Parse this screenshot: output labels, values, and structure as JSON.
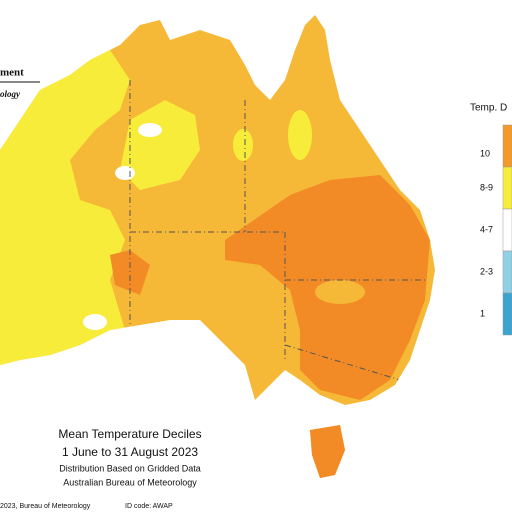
{
  "logo": {
    "line1": "ment",
    "line2": "ology"
  },
  "legend": {
    "title": "Temp. D",
    "items": [
      {
        "label": "10",
        "color": "#f39a2a"
      },
      {
        "label": "8-9",
        "color": "#f7ec3c"
      },
      {
        "label": "4-7",
        "color": "#ffffff"
      },
      {
        "label": "2-3",
        "color": "#8fd0e6"
      },
      {
        "label": "1",
        "color": "#3aa3d0"
      }
    ]
  },
  "caption": {
    "title": "Mean Temperature Deciles",
    "period": "1 June to 31 August 2023",
    "line1": "Distribution Based on Gridded Data",
    "line2": "Australian Bureau of Meteorology"
  },
  "footer": {
    "copyright": "2023, Bureau of Meteorology",
    "id": "ID code: AWAP"
  }
}
